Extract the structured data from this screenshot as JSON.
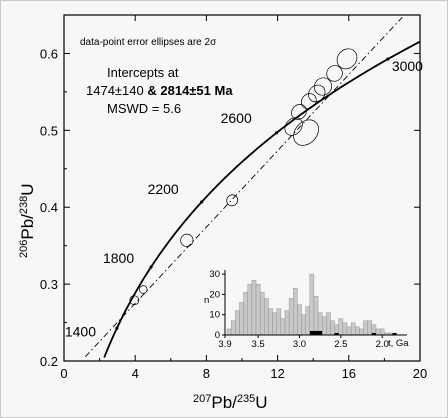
{
  "chart_data": {
    "type": "scatter",
    "subtype": "concordia",
    "xlabel": {
      "base": "",
      "sup": "207",
      "main": "Pb/",
      "sup2": "235",
      "end": "U"
    },
    "ylabel": {
      "sup": "206",
      "main": "Pb/",
      "sup2": "238",
      "end": "U"
    },
    "xlim": [
      0,
      20
    ],
    "ylim": [
      0.2,
      0.65
    ],
    "x_ticks": [
      0,
      4,
      8,
      12,
      16,
      20
    ],
    "y_ticks": [
      0.2,
      0.3,
      0.4,
      0.5,
      0.6
    ],
    "y_tick_labels": [
      "0.2",
      "0.3",
      "0.4",
      "0.5",
      "0.6"
    ],
    "note": "data-point error ellipses are 2σ",
    "intercepts": {
      "line1": "Intercepts at",
      "lower": "1474±140",
      "amp": " & ",
      "upper": "2814±51 Ma",
      "mswd": "MSWD = 5.6"
    },
    "concordia_age_labels": [
      "1400",
      "1800",
      "2200",
      "2600",
      "3000"
    ],
    "concordia_ages_ma": [
      1400,
      1800,
      2200,
      2600,
      3000
    ],
    "discordia": {
      "lower_intercept_ma": 1474,
      "upper_intercept_ma": 2814
    },
    "ellipses": [
      {
        "x": 3.95,
        "y": 0.279,
        "rx": 0.25,
        "ry": 0.006
      },
      {
        "x": 4.45,
        "y": 0.293,
        "rx": 0.22,
        "ry": 0.005
      },
      {
        "x": 6.9,
        "y": 0.357,
        "rx": 0.35,
        "ry": 0.008
      },
      {
        "x": 9.45,
        "y": 0.409,
        "rx": 0.32,
        "ry": 0.007
      },
      {
        "x": 12.9,
        "y": 0.505,
        "rx": 0.55,
        "ry": 0.01
      },
      {
        "x": 13.6,
        "y": 0.497,
        "rx": 0.8,
        "ry": 0.014
      },
      {
        "x": 13.2,
        "y": 0.524,
        "rx": 0.45,
        "ry": 0.009
      },
      {
        "x": 13.75,
        "y": 0.538,
        "rx": 0.45,
        "ry": 0.009
      },
      {
        "x": 14.2,
        "y": 0.548,
        "rx": 0.5,
        "ry": 0.01
      },
      {
        "x": 14.55,
        "y": 0.557,
        "rx": 0.5,
        "ry": 0.011
      },
      {
        "x": 15.2,
        "y": 0.574,
        "rx": 0.45,
        "ry": 0.01
      },
      {
        "x": 15.9,
        "y": 0.593,
        "rx": 0.6,
        "ry": 0.012
      }
    ],
    "inset": {
      "type": "bar",
      "ylabel": "n",
      "xlabel": "t, Ga",
      "xlim": [
        3.9,
        1.7
      ],
      "ylim": [
        0,
        32
      ],
      "x_ticks": [
        3.9,
        3.5,
        3.0,
        2.5,
        2.0
      ],
      "x_tick_labels": [
        "3.9",
        "3.5",
        "3.0",
        "2.5",
        "2.0"
      ],
      "y_ticks": [
        0,
        10,
        20,
        30
      ],
      "y_tick_labels": [
        "0",
        "10",
        "20",
        "30"
      ],
      "bin_width": 0.05,
      "histogram": [
        {
          "x": 3.85,
          "n": 3
        },
        {
          "x": 3.8,
          "n": 7
        },
        {
          "x": 3.75,
          "n": 12
        },
        {
          "x": 3.7,
          "n": 16
        },
        {
          "x": 3.65,
          "n": 21
        },
        {
          "x": 3.6,
          "n": 25
        },
        {
          "x": 3.55,
          "n": 27
        },
        {
          "x": 3.5,
          "n": 25
        },
        {
          "x": 3.45,
          "n": 21
        },
        {
          "x": 3.4,
          "n": 18
        },
        {
          "x": 3.35,
          "n": 13
        },
        {
          "x": 3.3,
          "n": 11
        },
        {
          "x": 3.25,
          "n": 13
        },
        {
          "x": 3.2,
          "n": 8
        },
        {
          "x": 3.15,
          "n": 12
        },
        {
          "x": 3.1,
          "n": 18
        },
        {
          "x": 3.05,
          "n": 23
        },
        {
          "x": 3.0,
          "n": 15
        },
        {
          "x": 2.95,
          "n": 10
        },
        {
          "x": 2.9,
          "n": 14
        },
        {
          "x": 2.85,
          "n": 30
        },
        {
          "x": 2.8,
          "n": 19
        },
        {
          "x": 2.75,
          "n": 11
        },
        {
          "x": 2.7,
          "n": 9
        },
        {
          "x": 2.65,
          "n": 11
        },
        {
          "x": 2.6,
          "n": 7
        },
        {
          "x": 2.55,
          "n": 5
        },
        {
          "x": 2.5,
          "n": 8
        },
        {
          "x": 2.45,
          "n": 6
        },
        {
          "x": 2.4,
          "n": 4
        },
        {
          "x": 2.35,
          "n": 6
        },
        {
          "x": 2.3,
          "n": 4
        },
        {
          "x": 2.25,
          "n": 3
        },
        {
          "x": 2.2,
          "n": 7
        },
        {
          "x": 2.15,
          "n": 7
        },
        {
          "x": 2.1,
          "n": 5
        },
        {
          "x": 2.05,
          "n": 3
        },
        {
          "x": 2.0,
          "n": 3
        },
        {
          "x": 1.95,
          "n": 1
        },
        {
          "x": 1.9,
          "n": 1
        }
      ],
      "black_bars": [
        {
          "x": 2.85,
          "n": 2
        },
        {
          "x": 2.8,
          "n": 2
        },
        {
          "x": 2.75,
          "n": 2
        },
        {
          "x": 2.55,
          "n": 1
        },
        {
          "x": 2.1,
          "n": 1
        },
        {
          "x": 1.85,
          "n": 1
        }
      ]
    },
    "colors": {
      "hist_fill": "#c8c8c8",
      "hist_stroke": "#888888",
      "black": "#000000"
    }
  }
}
